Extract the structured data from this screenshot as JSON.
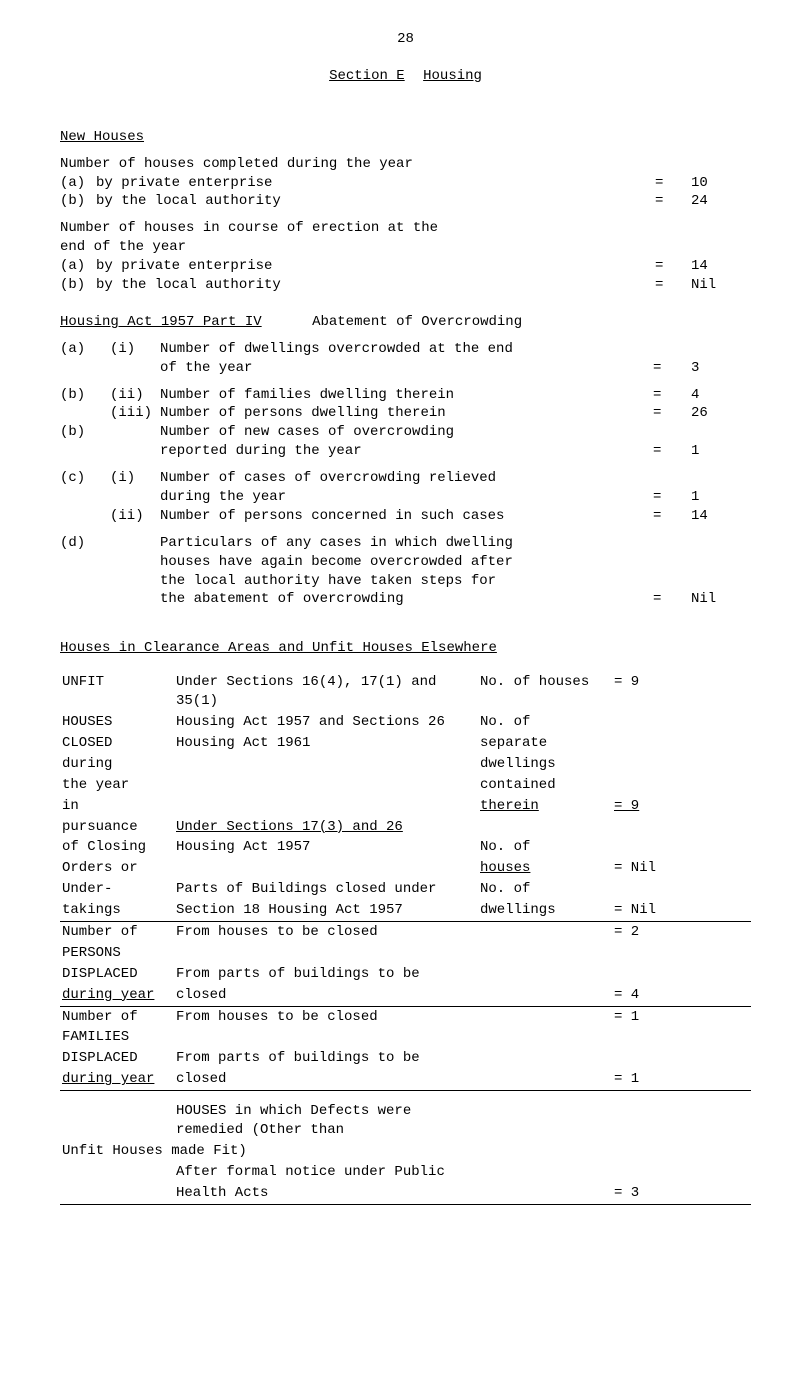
{
  "page_number": "28",
  "section_label_a": "Section E",
  "section_label_b": "Housing",
  "new_houses_heading": "New Houses",
  "completed_intro": "Number of houses completed during the year",
  "completed": [
    {
      "mk": "(a)",
      "txt": "by private enterprise",
      "eq": "=",
      "val": "10"
    },
    {
      "mk": "(b)",
      "txt": "by the local authority",
      "eq": "=",
      "val": "24"
    }
  ],
  "erection_intro_l1": "Number of houses in course of erection at the",
  "erection_intro_l2": "end of the year",
  "erection": [
    {
      "mk": "(a)",
      "txt": "by private enterprise",
      "eq": "=",
      "val": "14"
    },
    {
      "mk": "(b)",
      "txt": "by the local authority",
      "eq": "=",
      "val": "Nil"
    }
  ],
  "act_heading_u": "Housing Act 1957   Part IV",
  "act_heading_rest": "Abatement of Overcrowding",
  "act_rows": [
    {
      "a": "(a)",
      "b": "(i)",
      "txt1": "Number of dwellings overcrowded at the end",
      "txt2": "of the year",
      "eq": "=",
      "val": "3"
    },
    {
      "a": "(b)",
      "b": "(ii)",
      "txt1": "Number of families dwelling therein",
      "txt2": "",
      "eq": "=",
      "val": "4"
    },
    {
      "a": "",
      "b": "(iii)",
      "txt1": "Number of persons dwelling therein",
      "txt2": "",
      "eq": "=",
      "val": "26"
    },
    {
      "a": "(b)",
      "b": "",
      "txt1": "Number of new cases of overcrowding",
      "txt2": "reported during the year",
      "eq": "=",
      "val": "1"
    },
    {
      "a": "(c)",
      "b": "(i)",
      "txt1": "Number of cases of overcrowding relieved",
      "txt2": "during the year",
      "eq": "=",
      "val": "1"
    },
    {
      "a": "",
      "b": "(ii)",
      "txt1": "Number of persons concerned in such cases",
      "txt2": "",
      "eq": "=",
      "val": "14"
    },
    {
      "a": "(d)",
      "b": "",
      "txt1": "Particulars of any cases in which dwelling",
      "txt2": "",
      "eq": "",
      "val": ""
    },
    {
      "a": "",
      "b": "",
      "txt1": "houses have again become overcrowded after",
      "txt2": "",
      "eq": "",
      "val": ""
    },
    {
      "a": "",
      "b": "",
      "txt1": "the local authority have taken steps for",
      "txt2": "",
      "eq": "",
      "val": ""
    },
    {
      "a": "",
      "b": "",
      "txt1": "the abatement of overcrowding",
      "txt2": "",
      "eq": "=",
      "val": "Nil"
    }
  ],
  "clearance_heading": "Houses in Clearance Areas and Unfit Houses Elsewhere",
  "left_block1": [
    "UNFIT",
    "HOUSES",
    "CLOSED",
    "during",
    "the year",
    "in"
  ],
  "left_block2": [
    "pursuance",
    "of Closing",
    "Orders or"
  ],
  "left_block3": [
    "Under-",
    "takings"
  ],
  "mid1": [
    "Under Sections 16(4), 17(1) and 35(1)",
    "Housing Act 1957 and Sections 26",
    "Housing Act 1961"
  ],
  "mid2": [
    "Under Sections 17(3) and 26",
    "Housing Act 1957"
  ],
  "mid3": [
    "Parts of Buildings closed under",
    "Section 18 Housing Act 1957"
  ],
  "right1": [
    "No. of houses",
    "No. of",
    "separate",
    "dwellings",
    "contained",
    "therein"
  ],
  "right1_vals": [
    "=  9",
    "",
    "",
    "",
    "",
    "=  9"
  ],
  "right2": [
    "",
    "No. of",
    "houses"
  ],
  "right2_vals": [
    "",
    "",
    "= Nil"
  ],
  "right3": [
    "No. of",
    "dwellings"
  ],
  "right3_vals": [
    "",
    "= Nil"
  ],
  "persons_left": [
    "Number of",
    "PERSONS",
    "DISPLACED",
    "during year"
  ],
  "persons_mid": [
    "From houses to be closed",
    "",
    "From parts of buildings to be",
    "closed"
  ],
  "persons_vals": [
    "=   2",
    "",
    "",
    "=   4"
  ],
  "families_left": [
    "Number of",
    "FAMILIES",
    "DISPLACED",
    "during year"
  ],
  "families_mid": [
    "From houses to be closed",
    "",
    "From parts of buildings to be",
    "closed"
  ],
  "families_vals": [
    "=   1",
    "",
    "",
    "=   1"
  ],
  "defects_l1": "HOUSES in which Defects were remedied (Other than",
  "defects_l2": "Unfit Houses made Fit)",
  "defects_l3": "After formal notice under Public",
  "defects_l4": "Health Acts",
  "defects_val": "=   3"
}
